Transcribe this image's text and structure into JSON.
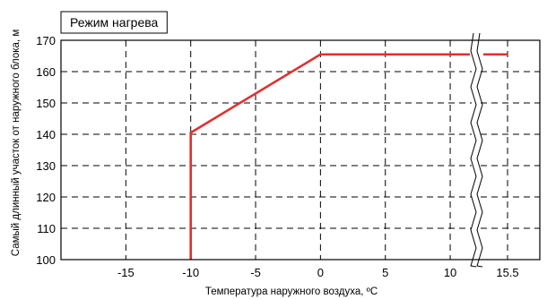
{
  "chart_data": {
    "type": "line",
    "title": "Режим нагрева",
    "xlabel": "Температура наружного воздуха, ºС",
    "ylabel": "Самый длинный участок от наружного блока, м",
    "x_ticks": [
      -15,
      -10,
      -5,
      0,
      5,
      10,
      15.5
    ],
    "x_tick_labels": [
      "-15",
      "-10",
      "-5",
      "0",
      "5",
      "10",
      "15.5"
    ],
    "y_ticks": [
      100,
      110,
      120,
      130,
      140,
      150,
      160,
      170
    ],
    "y_tick_labels": [
      "100",
      "110",
      "120",
      "130",
      "140",
      "150",
      "160",
      "170"
    ],
    "xlim": [
      -20,
      17.5
    ],
    "ylim": [
      100,
      170
    ],
    "x_axis_break": true,
    "grid": true,
    "grid_style": "dashed",
    "line_color": "#e03030",
    "series": [
      {
        "x": [
          -10,
          -10,
          0,
          15.5
        ],
        "y": [
          100,
          140.5,
          165.5,
          165.5
        ]
      }
    ]
  }
}
